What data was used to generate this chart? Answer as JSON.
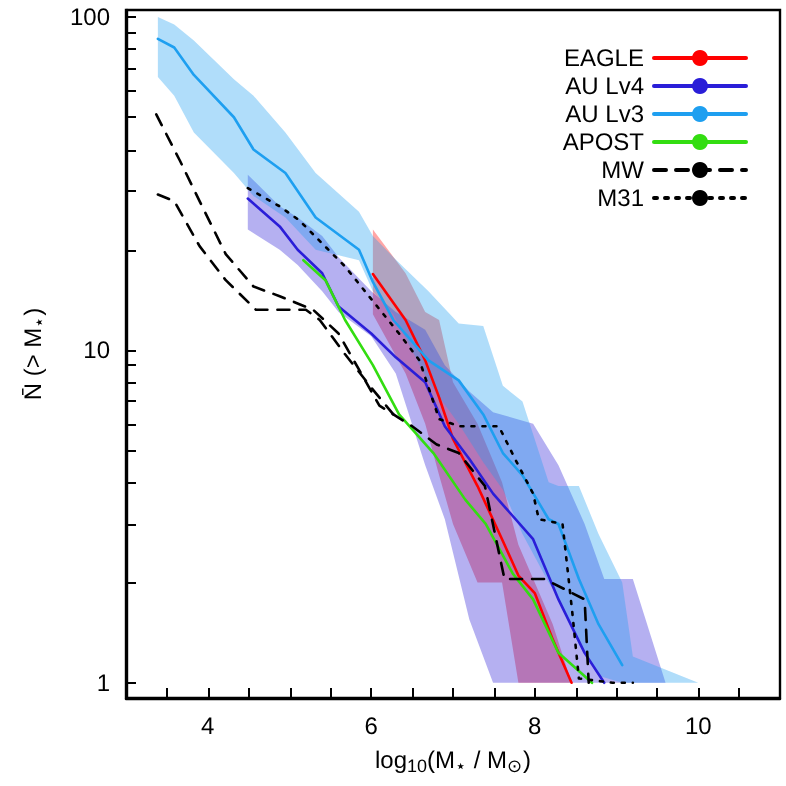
{
  "chart_data": {
    "type": "line",
    "xlabel": "log$_{10}$(M$_{⋆}$ / M$_{⊙}$)",
    "ylabel": "N̄ (> M$_{⋆}$)",
    "log": "y",
    "xlim": [
      3,
      11
    ],
    "ylim": [
      0.9,
      105
    ],
    "xticks": [
      {
        "value": 3.5,
        "label": null
      },
      4,
      {
        "value": 4.5,
        "label": null
      },
      {
        "value": 5,
        "label": null
      },
      {
        "value": 5.5,
        "label": null
      },
      6,
      {
        "value": 6.5,
        "label": null
      },
      {
        "value": 7,
        "label": null
      },
      {
        "value": 7.5,
        "label": null
      },
      8,
      {
        "value": 8.5,
        "label": null
      },
      {
        "value": 9,
        "label": null
      },
      {
        "value": 9.5,
        "label": null
      },
      10,
      {
        "value": 10.5,
        "label": null
      }
    ],
    "yticks": [
      1,
      {
        "value": 2,
        "label": null
      },
      {
        "value": 3,
        "label": null
      },
      {
        "value": 4,
        "label": null
      },
      {
        "value": 5,
        "label": null
      },
      {
        "value": 6,
        "label": null
      },
      {
        "value": 7,
        "label": null
      },
      {
        "value": 8,
        "label": null
      },
      {
        "value": 9,
        "label": null
      },
      10,
      {
        "value": 20,
        "label": null
      },
      {
        "value": 30,
        "label": null
      },
      {
        "value": 40,
        "label": null
      },
      {
        "value": 50,
        "label": null
      },
      {
        "value": 60,
        "label": null
      },
      {
        "value": 70,
        "label": null
      },
      {
        "value": 80,
        "label": null
      },
      {
        "value": 90,
        "label": null
      },
      100
    ],
    "grid": false,
    "legend": "top right",
    "marker": "none",
    "series": [
      {
        "name": "EAGLE",
        "color": "#ff0000",
        "line_style": "solid",
        "x": [
          6.02,
          6.42,
          6.66,
          6.83,
          7.0,
          7.3,
          7.6,
          7.8,
          8.0,
          8.22,
          8.45
        ],
        "values": [
          16.9,
          12.3,
          9.3,
          7.2,
          5.4,
          3.9,
          2.7,
          2.1,
          1.86,
          1.35,
          1.0
        ],
        "lower": [
          12.8,
          8.5,
          6.0,
          4.2,
          3.0,
          2.0,
          2.0,
          1.0,
          1.0,
          1.0,
          1.0
        ],
        "upper": [
          23,
          17,
          13,
          12.3,
          8,
          6,
          4,
          2.6,
          2.0,
          1.5,
          1.0
        ]
      },
      {
        "name": "AU Lv4",
        "color": "#2a1ed8",
        "line_style": "solid",
        "x": [
          4.49,
          4.88,
          5.1,
          5.4,
          5.6,
          6.0,
          6.3,
          6.66,
          6.9,
          7.2,
          7.49,
          7.98,
          8.29,
          8.61,
          8.85,
          9.2,
          9.6
        ],
        "values": [
          28.5,
          23.5,
          20,
          17,
          13.5,
          11.2,
          9.5,
          8.0,
          5.9,
          4.7,
          3.7,
          2.7,
          1.78,
          1.23,
          1.0,
          null,
          null
        ],
        "lower": [
          23,
          20,
          18,
          15,
          13,
          11,
          8.5,
          4.5,
          3.1,
          1.55,
          1.0,
          1.0,
          1.0,
          1.0,
          1.0,
          1.0,
          1.0
        ],
        "upper": [
          33.6,
          27,
          25,
          22,
          19,
          15,
          13,
          11.5,
          9,
          7.5,
          6.5,
          6.0,
          4.5,
          3.0,
          2.05,
          2.05,
          1.0
        ]
      },
      {
        "name": "AU Lv3",
        "color": "#1e9ff0",
        "line_style": "solid",
        "x": [
          3.39,
          3.59,
          3.83,
          4.32,
          4.56,
          4.95,
          5.32,
          5.85,
          6.02,
          6.27,
          6.7,
          7.07,
          7.37,
          7.61,
          7.85,
          8.17,
          8.29,
          8.54,
          8.78,
          9.07,
          9.2,
          10.0
        ],
        "values": [
          86,
          81,
          67,
          50,
          40,
          34,
          25,
          20,
          16,
          12.3,
          9.3,
          8.1,
          6.4,
          4.9,
          4.2,
          3.1,
          3.0,
          2.05,
          1.5,
          1.13,
          null,
          null
        ],
        "lower": [
          66,
          58,
          45,
          34,
          29,
          25,
          20,
          18.6,
          15,
          12.8,
          8,
          6,
          4.6,
          3.8,
          2.8,
          2.0,
          1.8,
          1.3,
          1.05,
          1.0,
          1.0,
          1.0
        ],
        "upper": [
          100,
          95,
          85,
          65,
          58,
          45,
          34,
          26,
          22,
          19,
          15,
          12,
          11.8,
          7.8,
          7.0,
          4.0,
          3.9,
          3.9,
          2.8,
          2.0,
          1.2,
          1.0
        ]
      },
      {
        "name": "APOST",
        "color": "#33dd11",
        "line_style": "solid",
        "x": [
          5.17,
          5.44,
          5.68,
          6.02,
          6.34,
          6.76,
          7.15,
          7.4,
          7.73,
          7.98,
          8.29,
          8.7
        ],
        "values": [
          18.6,
          16.2,
          12.3,
          9.0,
          6.4,
          4.9,
          3.55,
          3.0,
          2.13,
          1.78,
          1.23,
          1.0
        ]
      },
      {
        "name": "MW",
        "color": "#000000",
        "line_style": "dashed",
        "x": [
          3.37,
          3.66,
          3.9,
          4.22,
          4.56,
          4.88,
          5.29,
          5.6,
          6.1,
          6.5,
          6.8,
          7.07,
          7.39,
          7.63,
          8.12,
          8.61,
          8.66
        ],
        "values": [
          51,
          37,
          28,
          19.4,
          15.5,
          14.5,
          13.2,
          11.2,
          6.8,
          5.9,
          5.2,
          4.9,
          3.9,
          2.05,
          2.05,
          1.78,
          1.0
        ]
      },
      {
        "color": "#000000",
        "line_style": "dashed",
        "x": [
          3.39,
          3.59,
          3.9,
          4.22,
          4.59,
          5.2,
          5.37,
          5.68,
          6.02,
          6.27
        ],
        "values": [
          29.3,
          28,
          20.5,
          16.2,
          13.2,
          13.2,
          12.3,
          9.7,
          7.6,
          6.4
        ]
      },
      {
        "name": "M31",
        "color": "#000000",
        "line_style": "dotted",
        "x": [
          4.49,
          4.88,
          5.12,
          5.68,
          6.34,
          6.59,
          6.83,
          7.07,
          7.56,
          7.76,
          7.98,
          8.05,
          8.34,
          8.46,
          8.54,
          8.95,
          9.2
        ],
        "values": [
          30.6,
          27,
          24.5,
          17.8,
          11.2,
          9.3,
          6.2,
          5.9,
          5.9,
          4.7,
          3.7,
          3.1,
          3.0,
          1.62,
          1.03,
          1.0,
          1.0
        ]
      }
    ]
  }
}
